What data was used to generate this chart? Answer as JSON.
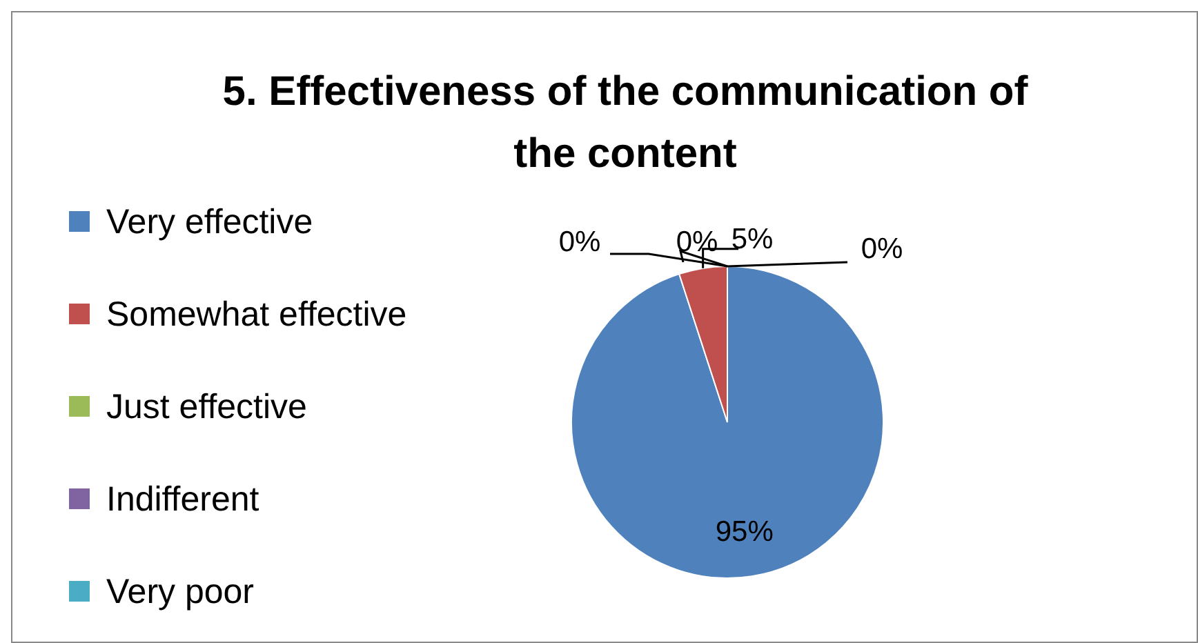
{
  "chart_data": {
    "type": "pie",
    "title": "5. Effectiveness of the communication of the content",
    "categories": [
      "Very effective",
      "Somewhat effective",
      "Just effective",
      "Indifferent",
      "Very poor"
    ],
    "values": [
      95,
      5,
      0,
      0,
      0
    ],
    "colors": [
      "#4f81bd",
      "#c0504d",
      "#9bbb59",
      "#8064a2",
      "#4bacc6"
    ],
    "value_labels": [
      "95%",
      "5%",
      "0%",
      "0%",
      "0%"
    ],
    "legend": "left"
  }
}
